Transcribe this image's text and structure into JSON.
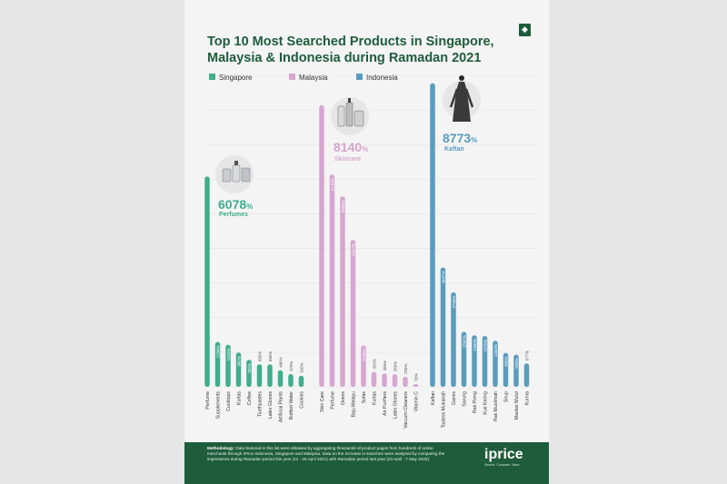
{
  "title_line1": "Top 10 Most Searched Products in Singapore,",
  "title_line2": "Malaysia & Indonesia during Ramadan 2021",
  "footer": {
    "label": "Methodology:",
    "text": "Data featured in this list were obtained by aggregating thousands of product pages from hundreds of online merchants through iPrice Indonesia, Singapore and Malaysia. Data on the increase in searches were analysed by comparing the impressions during Ramadan period this year (12 - 26 April 2021) with Ramadan period last year (23 April - 7 May 2020).",
    "logo": "iprice",
    "logo_sub": "Search. Compare. Save."
  },
  "badge_icon": "tag-icon",
  "colors": {
    "Singapore": "#3fae8b",
    "Malaysia": "#d6a6d0",
    "Indonesia": "#5a9cbd",
    "title": "#1e5c3b"
  },
  "chart_data": {
    "type": "bar",
    "ylim": [
      0,
      9000
    ],
    "grid": true,
    "legend": "top",
    "series": [
      {
        "name": "Singapore",
        "categories": [
          "Perfume",
          "Supplements",
          "Cooktops",
          "Kurtas",
          "Coffee",
          "Toothpastes",
          "Latex Gloves",
          "Artificial Plants",
          "Bottled Water",
          "Cookies"
        ],
        "values": [
          6078,
          1298,
          1216,
          990,
          780,
          650,
          650,
          480,
          370,
          320
        ],
        "labels": [
          "",
          "1298%",
          "1216%",
          "990%",
          "780%",
          "650%",
          "650%",
          "480%",
          "370%",
          "320%"
        ],
        "highlight_value": "6078",
        "highlight_label": "Perfumes"
      },
      {
        "name": "Malaysia",
        "categories": [
          "Skin Care",
          "Perfume",
          "Ovens",
          "Baju Melayu",
          "Sofas",
          "Kurtas",
          "Air Purifiers",
          "Latex Gloves",
          "Vacuum Cleaners",
          "Vitamin C"
        ],
        "values": [
          8140,
          6133,
          5500,
          4247,
          1196,
          433,
          386,
          366,
          293,
          78
        ],
        "labels": [
          "",
          "6133%",
          "5500%",
          "4247%",
          "1196%",
          "433%",
          "386%",
          "366%",
          "293%",
          "78%"
        ],
        "highlight_value": "8140",
        "highlight_label": "Skincare"
      },
      {
        "name": "Indonesia",
        "categories": [
          "Kaftan",
          "Topless Mukanah",
          "Gamis",
          "Sarung",
          "Rak Piring",
          "Kue Kering",
          "Rak Muslimah",
          "Sirup",
          "Masker Mulut",
          "Kurma"
        ],
        "values": [
          8773,
          3447,
          2733,
          1590,
          1490,
          1470,
          1330,
          980,
          930,
          677
        ],
        "labels": [
          "",
          "3447%",
          "2733%",
          "1590%",
          "1490%",
          "1470%",
          "1330%",
          "980%",
          "930%",
          "677%"
        ],
        "highlight_value": "8773",
        "highlight_label": "Kaftan"
      }
    ],
    "unit_suffix": "%"
  }
}
